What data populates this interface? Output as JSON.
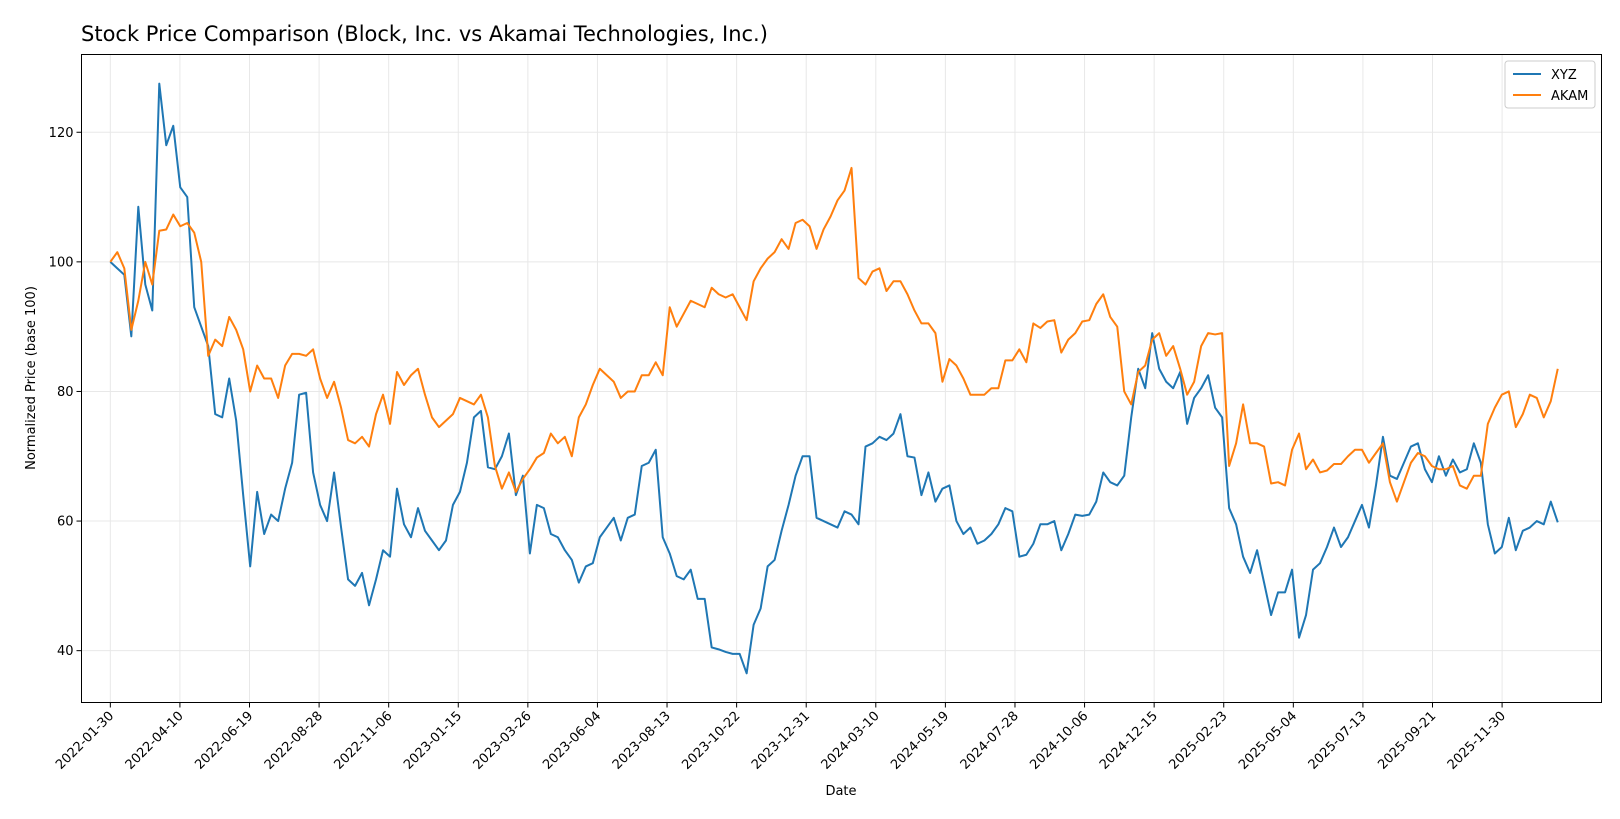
{
  "chart_data": {
    "type": "line",
    "title": "Stock Price Comparison (Block, Inc. vs Akamai Technologies, Inc.)",
    "xlabel": "Date",
    "ylabel": "Normalized Price (base 100)",
    "ylim": [
      32,
      132
    ],
    "yticks": [
      40,
      60,
      80,
      100,
      120
    ],
    "x_start": "2022-01-30",
    "x_end": "2026-01-25",
    "xlim": [
      "2022-01-01",
      "2026-03-10"
    ],
    "xticks": [
      "2022-01-30",
      "2022-04-10",
      "2022-06-19",
      "2022-08-28",
      "2022-11-06",
      "2023-01-15",
      "2023-03-26",
      "2023-06-04",
      "2023-08-13",
      "2023-10-22",
      "2023-12-31",
      "2024-03-10",
      "2024-05-19",
      "2024-07-28",
      "2024-10-06",
      "2024-12-15",
      "2025-02-23",
      "2025-05-04",
      "2025-07-13",
      "2025-09-21",
      "2025-11-30"
    ],
    "grid": true,
    "legend_position": "top-right",
    "series": [
      {
        "name": "XYZ",
        "color": "#1f77b4",
        "values": [
          100.0,
          99.0,
          98.0,
          88.5,
          108.5,
          96.5,
          92.5,
          127.5,
          118.0,
          121.0,
          111.5,
          110.0,
          93.0,
          90.0,
          87.0,
          76.5,
          76.0,
          82.0,
          75.5,
          64.0,
          53.0,
          64.5,
          58.0,
          61.0,
          60.0,
          65.0,
          69.0,
          79.5,
          79.8,
          67.5,
          62.5,
          60.0,
          67.5,
          59.0,
          51.0,
          50.0,
          52.0,
          47.0,
          51.0,
          55.5,
          54.5,
          65.0,
          59.5,
          57.5,
          62.0,
          58.5,
          57.0,
          55.5,
          57.0,
          62.5,
          64.5,
          69.0,
          76.0,
          77.0,
          68.3,
          68.0,
          70.0,
          73.5,
          64.0,
          67.0,
          55.0,
          62.5,
          62.0,
          58.0,
          57.5,
          55.5,
          54.0,
          50.5,
          53.0,
          53.5,
          57.5,
          59.0,
          60.5,
          57.0,
          60.5,
          61.0,
          68.5,
          69.0,
          71.0,
          57.5,
          55.0,
          51.5,
          51.0,
          52.5,
          48.0,
          48.0,
          40.5,
          40.2,
          39.8,
          39.5,
          39.5,
          36.5,
          44.0,
          46.5,
          53.0,
          54.0,
          58.5,
          62.5,
          67.0,
          70.0,
          70.0,
          60.5,
          60.0,
          59.5,
          59.0,
          61.5,
          61.0,
          59.5,
          71.5,
          72.0,
          73.0,
          72.5,
          73.5,
          76.5,
          70.0,
          69.8,
          64.0,
          67.5,
          63.0,
          65.0,
          65.5,
          60.0,
          58.0,
          59.0,
          56.5,
          57.0,
          58.0,
          59.5,
          62.0,
          61.5,
          54.5,
          54.8,
          56.5,
          59.5,
          59.5,
          60.0,
          55.5,
          58.0,
          61.0,
          60.8,
          61.0,
          63.0,
          67.5,
          66.0,
          65.5,
          67.0,
          76.0,
          83.5,
          80.5,
          89.0,
          83.5,
          81.5,
          80.5,
          83.0,
          75.0,
          79.0,
          80.5,
          82.5,
          77.5,
          76.0,
          62.0,
          59.5,
          54.5,
          52.0,
          55.5,
          50.5,
          45.5,
          49.0,
          49.0,
          52.5,
          42.0,
          45.5,
          52.5,
          53.5,
          56.0,
          59.0,
          56.0,
          57.5,
          60.0,
          62.5,
          59.0,
          65.5,
          73.0,
          67.0,
          66.5,
          69.0,
          71.5,
          72.0,
          68.0,
          66.0,
          70.0,
          67.0,
          69.5,
          67.5,
          68.0,
          72.0,
          69.0,
          59.5,
          55.0,
          56.0,
          60.5,
          55.5,
          58.5,
          59.0,
          60.0,
          59.5,
          63.0,
          59.8
        ]
      },
      {
        "name": "AKAM",
        "color": "#ff7f0e",
        "values": [
          100.0,
          101.5,
          99.0,
          89.5,
          94.0,
          100.0,
          96.5,
          104.8,
          105.0,
          107.3,
          105.5,
          106.0,
          104.5,
          100.0,
          85.5,
          88.0,
          87.0,
          91.5,
          89.5,
          86.5,
          80.0,
          84.0,
          82.0,
          82.0,
          79.0,
          84.0,
          85.8,
          85.8,
          85.5,
          86.5,
          82.0,
          79.0,
          81.5,
          77.5,
          72.5,
          72.0,
          73.0,
          71.5,
          76.5,
          79.5,
          75.0,
          83.0,
          81.0,
          82.5,
          83.5,
          79.5,
          76.0,
          74.5,
          75.5,
          76.5,
          79.0,
          78.5,
          78.0,
          79.5,
          76.0,
          68.5,
          65.0,
          67.5,
          64.5,
          66.5,
          68.0,
          69.8,
          70.5,
          73.5,
          72.0,
          73.0,
          70.0,
          76.0,
          78.0,
          81.0,
          83.5,
          82.5,
          81.5,
          79.0,
          80.0,
          80.0,
          82.5,
          82.5,
          84.5,
          82.5,
          93.0,
          90.0,
          92.0,
          94.0,
          93.5,
          93.0,
          96.0,
          95.0,
          94.5,
          95.0,
          93.0,
          91.0,
          97.0,
          99.0,
          100.5,
          101.5,
          103.5,
          102.0,
          106.0,
          106.5,
          105.5,
          102.0,
          105.0,
          107.0,
          109.5,
          111.0,
          114.5,
          97.5,
          96.5,
          98.5,
          99.0,
          95.5,
          97.0,
          97.0,
          95.0,
          92.5,
          90.5,
          90.5,
          89.0,
          81.5,
          85.0,
          84.0,
          82.0,
          79.5,
          79.5,
          79.5,
          80.5,
          80.5,
          84.8,
          84.8,
          86.5,
          84.5,
          90.5,
          89.8,
          90.8,
          91.0,
          86.0,
          88.0,
          89.0,
          90.8,
          91.0,
          93.5,
          95.0,
          91.5,
          90.0,
          80.0,
          78.0,
          83.0,
          84.0,
          88.0,
          89.0,
          85.5,
          87.0,
          83.5,
          79.5,
          81.5,
          87.0,
          89.0,
          88.8,
          89.0,
          68.5,
          72.0,
          78.0,
          72.0,
          72.0,
          71.5,
          65.8,
          66.0,
          65.5,
          71.0,
          73.5,
          68.0,
          69.5,
          67.5,
          67.8,
          68.8,
          68.8,
          70.0,
          71.0,
          71.0,
          69.0,
          70.5,
          72.0,
          66.0,
          63.0,
          66.0,
          69.0,
          70.5,
          70.0,
          68.5,
          68.0,
          68.0,
          68.5,
          65.5,
          65.0,
          67.0,
          67.0,
          75.0,
          77.5,
          79.5,
          80.0,
          74.5,
          76.5,
          79.5,
          79.0,
          76.0,
          78.5,
          83.5
        ]
      }
    ]
  }
}
